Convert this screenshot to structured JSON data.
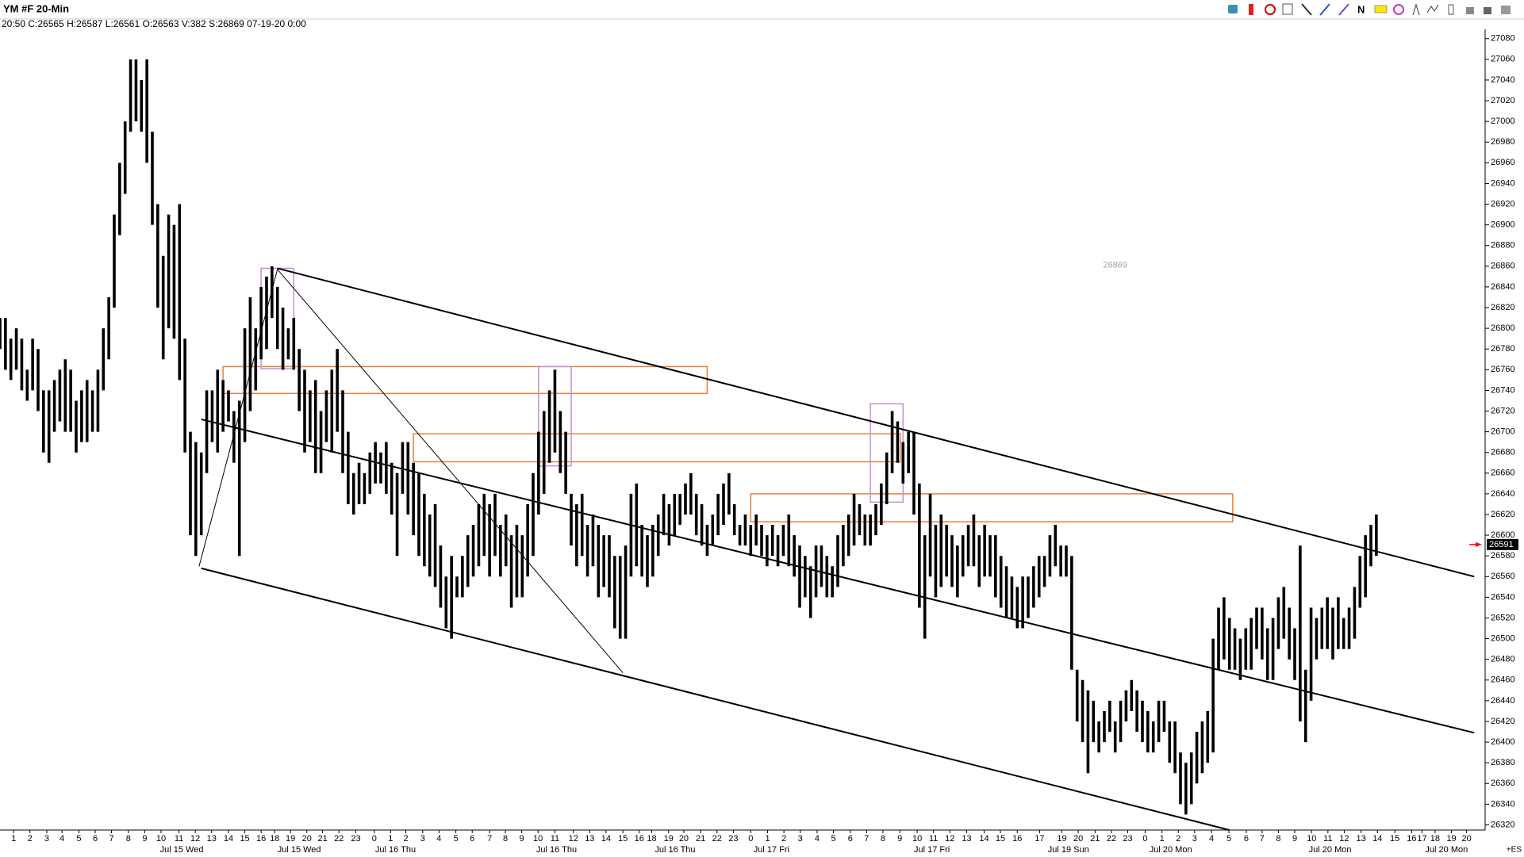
{
  "chart_data": {
    "type": "hilo",
    "title": "YM #F 20-Min",
    "subtitle": "20:50 C:26565 H:26587 L:26561 O:26563 V:382 S:26869 07-19-20 0:00",
    "toolbar_letter": "N",
    "symbol_label": "+ES",
    "color": "#000000",
    "high": [
      26810,
      26810,
      26790,
      26800,
      26790,
      26760,
      26790,
      26780,
      26740,
      26740,
      26750,
      26760,
      26770,
      26760,
      26730,
      26740,
      26750,
      26740,
      26760,
      26800,
      26830,
      26910,
      26960,
      27000,
      27060,
      27060,
      27040,
      27060,
      26990,
      26920,
      26870,
      26910,
      26900,
      26920,
      26790,
      26700,
      26690,
      26680,
      26740,
      26740,
      26760,
      26750,
      26740,
      26720,
      26730,
      26800,
      26830,
      26800,
      26840,
      26850,
      26860,
      26840,
      26820,
      26800,
      26810,
      26780,
      26760,
      26740,
      26750,
      26720,
      26740,
      26760,
      26780,
      26740,
      26700,
      26660,
      26670,
      26660,
      26680,
      26690,
      26680,
      26690,
      26670,
      26660,
      26690,
      26690,
      26670,
      26660,
      26640,
      26620,
      26630,
      26590,
      26560,
      26580,
      26560,
      26580,
      26600,
      26610,
      26630,
      26640,
      26630,
      26640,
      26610,
      26620,
      26600,
      26610,
      26600,
      26630,
      26660,
      26700,
      26720,
      26740,
      26760,
      26720,
      26700,
      26640,
      26630,
      26640,
      26610,
      26620,
      26610,
      26600,
      26600,
      26580,
      26580,
      26590,
      26640,
      26650,
      26610,
      26600,
      26610,
      26620,
      26640,
      26630,
      26640,
      26640,
      26650,
      26660,
      26640,
      26630,
      26610,
      26620,
      26640,
      26650,
      26660,
      26630,
      26610,
      26620,
      26610,
      26620,
      26610,
      26600,
      26610,
      26600,
      26610,
      26620,
      26600,
      26590,
      26580,
      26570,
      26590,
      26590,
      26580,
      26570,
      26600,
      26610,
      26620,
      26640,
      26630,
      26620,
      26620,
      26630,
      26650,
      26680,
      26720,
      26710,
      26690,
      26700,
      26700,
      26650,
      26600,
      26640,
      26610,
      26620,
      26610,
      26600,
      26590,
      26600,
      26610,
      26620,
      26600,
      26610,
      26600,
      26600,
      26580,
      26570,
      26560,
      26550,
      26560,
      26560,
      26570,
      26580,
      26580,
      26600,
      26610,
      26590,
      26590,
      26580,
      26470,
      26460,
      26450,
      26440,
      26420,
      26430,
      26440,
      26420,
      26440,
      26450,
      26460,
      26450,
      26440,
      26430,
      26420,
      26440,
      26440,
      26420,
      26420,
      26390,
      26380,
      26390,
      26410,
      26420,
      26430,
      26500,
      26530,
      26540,
      26520,
      26510,
      26500,
      26510,
      26520,
      26530,
      26530,
      26510,
      26520,
      26540,
      26550,
      26530,
      26510,
      26590,
      26470,
      26530,
      26520,
      26530,
      26540,
      26530,
      26540,
      26520,
      26530,
      26550,
      26580,
      26600,
      26610,
      26620
    ],
    "low": [
      26780,
      26760,
      26750,
      26760,
      26740,
      26730,
      26740,
      26720,
      26680,
      26670,
      26700,
      26710,
      26700,
      26700,
      26680,
      26690,
      26690,
      26700,
      26700,
      26740,
      26770,
      26820,
      26890,
      26930,
      26990,
      27000,
      26990,
      26960,
      26900,
      26820,
      26770,
      26800,
      26790,
      26750,
      26680,
      26600,
      26580,
      26600,
      26660,
      26690,
      26680,
      26700,
      26710,
      26670,
      26580,
      26690,
      26720,
      26740,
      26770,
      26780,
      26810,
      26780,
      26760,
      26770,
      26760,
      26720,
      26680,
      26690,
      26660,
      26660,
      26690,
      26680,
      26700,
      26660,
      26630,
      26620,
      26630,
      26630,
      26640,
      26650,
      26650,
      26640,
      26620,
      26580,
      26640,
      26620,
      26600,
      26580,
      26570,
      26560,
      26550,
      26530,
      26510,
      26500,
      26540,
      26540,
      26550,
      26560,
      26570,
      26580,
      26560,
      26580,
      26560,
      26570,
      26530,
      26540,
      26540,
      26560,
      26580,
      26620,
      26640,
      26670,
      26680,
      26660,
      26640,
      26590,
      26570,
      26580,
      26560,
      26570,
      26540,
      26550,
      26540,
      26510,
      26500,
      26500,
      26560,
      26570,
      26560,
      26550,
      26560,
      26580,
      26600,
      26590,
      26600,
      26610,
      26620,
      26620,
      26600,
      26590,
      26580,
      26590,
      26600,
      26610,
      26620,
      26600,
      26590,
      26590,
      26580,
      26590,
      26580,
      26570,
      26580,
      26570,
      26580,
      26570,
      26560,
      26530,
      26540,
      26520,
      26540,
      26550,
      26540,
      26540,
      26550,
      26570,
      26580,
      26590,
      26600,
      26590,
      26590,
      26600,
      26610,
      26630,
      26660,
      26670,
      26650,
      26660,
      26620,
      26530,
      26500,
      26560,
      26540,
      26550,
      26560,
      26550,
      26540,
      26560,
      26570,
      26570,
      26550,
      26560,
      26560,
      26540,
      26530,
      26520,
      26520,
      26510,
      26510,
      26520,
      26530,
      26540,
      26550,
      26560,
      26570,
      26560,
      26560,
      26470,
      26420,
      26400,
      26370,
      26400,
      26390,
      26400,
      26410,
      26390,
      26400,
      26420,
      26430,
      26410,
      26400,
      26390,
      26390,
      26400,
      26410,
      26380,
      26370,
      26340,
      26330,
      26340,
      26360,
      26370,
      26380,
      26390,
      26470,
      26480,
      26470,
      26470,
      26460,
      26470,
      26470,
      26490,
      26480,
      26460,
      26460,
      26490,
      26500,
      26480,
      26460,
      26420,
      26400,
      26440,
      26480,
      26490,
      26490,
      26480,
      26490,
      26490,
      26490,
      26500,
      26530,
      26540,
      26570,
      26580
    ],
    "xlim": [
      0,
      273
    ],
    "ylim": [
      26315,
      27089
    ],
    "yticks": [
      26320,
      26340,
      26360,
      26380,
      26400,
      26420,
      26440,
      26460,
      26480,
      26500,
      26520,
      26540,
      26560,
      26580,
      26600,
      26620,
      26640,
      26660,
      26680,
      26700,
      26720,
      26740,
      26760,
      26780,
      26800,
      26820,
      26840,
      26860,
      26880,
      26900,
      26920,
      26940,
      26960,
      26980,
      27000,
      27020,
      27040,
      27060,
      27080
    ],
    "xticks": [
      {
        "value": 2.5,
        "label": "1"
      },
      {
        "value": 5.5,
        "label": "2"
      },
      {
        "value": 8.6,
        "label": "3"
      },
      {
        "value": 11.4,
        "label": "4"
      },
      {
        "value": 14.5,
        "label": "5"
      },
      {
        "value": 17.5,
        "label": "6"
      },
      {
        "value": 20.5,
        "label": "7"
      },
      {
        "value": 23.6,
        "label": "8"
      },
      {
        "value": 26.6,
        "label": "9"
      },
      {
        "value": 29.6,
        "label": "10"
      },
      {
        "value": 32.9,
        "label": "11"
      },
      {
        "value": 35.9,
        "label": "12"
      },
      {
        "value": 38.9,
        "label": "13"
      },
      {
        "value": 42,
        "label": "14"
      },
      {
        "value": 45,
        "label": "15"
      },
      {
        "value": 48,
        "label": "16"
      },
      {
        "value": 50.5,
        "label": "18"
      },
      {
        "value": 53.4,
        "label": "19"
      },
      {
        "value": 56.4,
        "label": "20"
      },
      {
        "value": 59.3,
        "label": "21"
      },
      {
        "value": 62.3,
        "label": "22"
      },
      {
        "value": 65.4,
        "label": "23"
      },
      {
        "value": 68.8,
        "label": "0"
      },
      {
        "value": 71.8,
        "label": "1"
      },
      {
        "value": 74.6,
        "label": "2"
      },
      {
        "value": 77.7,
        "label": "3"
      },
      {
        "value": 80.7,
        "label": "4"
      },
      {
        "value": 83.8,
        "label": "5"
      },
      {
        "value": 86.8,
        "label": "6"
      },
      {
        "value": 90,
        "label": "7"
      },
      {
        "value": 92.9,
        "label": "8"
      },
      {
        "value": 95.9,
        "label": "9"
      },
      {
        "value": 98.9,
        "label": "10"
      },
      {
        "value": 102,
        "label": "11"
      },
      {
        "value": 105.4,
        "label": "12"
      },
      {
        "value": 108.4,
        "label": "13"
      },
      {
        "value": 111.4,
        "label": "14"
      },
      {
        "value": 114.5,
        "label": "15"
      },
      {
        "value": 117.5,
        "label": "16"
      },
      {
        "value": 119.8,
        "label": "18"
      },
      {
        "value": 122.9,
        "label": "19"
      },
      {
        "value": 125.7,
        "label": "20"
      },
      {
        "value": 128.8,
        "label": "21"
      },
      {
        "value": 131.8,
        "label": "22"
      },
      {
        "value": 134.8,
        "label": "23"
      },
      {
        "value": 138,
        "label": "0"
      },
      {
        "value": 141.1,
        "label": "1"
      },
      {
        "value": 144.1,
        "label": "2"
      },
      {
        "value": 147.1,
        "label": "3"
      },
      {
        "value": 150.2,
        "label": "4"
      },
      {
        "value": 153.2,
        "label": "5"
      },
      {
        "value": 156.3,
        "label": "6"
      },
      {
        "value": 159.3,
        "label": "7"
      },
      {
        "value": 162.3,
        "label": "8"
      },
      {
        "value": 165.4,
        "label": "9"
      },
      {
        "value": 168.6,
        "label": "10"
      },
      {
        "value": 171.6,
        "label": "11"
      },
      {
        "value": 174.6,
        "label": "12"
      },
      {
        "value": 177.7,
        "label": "13"
      },
      {
        "value": 180.9,
        "label": "14"
      },
      {
        "value": 183.9,
        "label": "15"
      },
      {
        "value": 187,
        "label": "16"
      },
      {
        "value": 191.1,
        "label": "17"
      },
      {
        "value": 195.2,
        "label": "19"
      },
      {
        "value": 198.2,
        "label": "20"
      },
      {
        "value": 201.3,
        "label": "21"
      },
      {
        "value": 204.3,
        "label": "22"
      },
      {
        "value": 207.3,
        "label": "23"
      },
      {
        "value": 210.5,
        "label": "0"
      },
      {
        "value": 213.6,
        "label": "1"
      },
      {
        "value": 216.6,
        "label": "2"
      },
      {
        "value": 219.6,
        "label": "3"
      },
      {
        "value": 222.7,
        "label": "4"
      },
      {
        "value": 225.9,
        "label": "5"
      },
      {
        "value": 229.1,
        "label": "6"
      },
      {
        "value": 232,
        "label": "7"
      },
      {
        "value": 235,
        "label": "8"
      },
      {
        "value": 238,
        "label": "9"
      },
      {
        "value": 241.1,
        "label": "10"
      },
      {
        "value": 244.1,
        "label": "11"
      },
      {
        "value": 247.1,
        "label": "12"
      },
      {
        "value": 250.2,
        "label": "13"
      },
      {
        "value": 253.2,
        "label": "14"
      },
      {
        "value": 256.4,
        "label": "15"
      },
      {
        "value": 259.5,
        "label": "16"
      },
      {
        "value": 261.4,
        "label": "17"
      },
      {
        "value": 263.8,
        "label": "18"
      },
      {
        "value": 266.8,
        "label": "19"
      },
      {
        "value": 269.6,
        "label": "20"
      }
    ],
    "date_labels": [
      {
        "value": 33.4,
        "label": "Jul 15 Wed"
      },
      {
        "value": 55,
        "label": "Jul 15 Wed"
      },
      {
        "value": 72.7,
        "label": "Jul 16 Thu"
      },
      {
        "value": 102.3,
        "label": "Jul 16 Thu"
      },
      {
        "value": 124.1,
        "label": "Jul 16 Thu"
      },
      {
        "value": 141.8,
        "label": "Jul 17 Fri"
      },
      {
        "value": 171.3,
        "label": "Jul 17 Fri"
      },
      {
        "value": 196.4,
        "label": "Jul 19 Sun"
      },
      {
        "value": 215.2,
        "label": "Jul 20 Mon"
      },
      {
        "value": 244.5,
        "label": "Jul 20 Mon"
      },
      {
        "value": 265.9,
        "label": "Jul 20 Mon"
      }
    ],
    "trendlines": [
      {
        "x": [
          51,
          271
        ],
        "y": [
          26858,
          26560
        ]
      },
      {
        "x": [
          37,
          271
        ],
        "y": [
          26712,
          26409
        ]
      },
      {
        "x": [
          37,
          226
        ],
        "y": [
          26568,
          26315
        ]
      }
    ],
    "guide_lines": [
      {
        "x": [
          36.6,
          51,
          114.5
        ],
        "y": [
          26570,
          26857,
          26467
        ]
      }
    ],
    "line_color": "#000000",
    "rectangles": [
      {
        "x": [
          41,
          130
        ],
        "y": [
          26737,
          26763
        ],
        "color": "#e8803a"
      },
      {
        "x": [
          76,
          165.5
        ],
        "y": [
          26671,
          26698
        ],
        "color": "#e8803a"
      },
      {
        "x": [
          138,
          226.6
        ],
        "y": [
          26613,
          26640
        ],
        "color": "#e8803a"
      },
      {
        "x": [
          48,
          54
        ],
        "y": [
          26761,
          26858
        ],
        "color": "#c58fd6"
      },
      {
        "x": [
          99,
          105
        ],
        "y": [
          26667,
          26763
        ],
        "color": "#c58fd6"
      },
      {
        "x": [
          160,
          166
        ],
        "y": [
          26632,
          26727
        ],
        "color": "#c58fd6"
      }
    ],
    "annotation": {
      "x": 205,
      "y": 26861,
      "text": "26869",
      "color": "#a0a0a0"
    },
    "last_price": 26591,
    "marker_color": "#ff0000"
  }
}
